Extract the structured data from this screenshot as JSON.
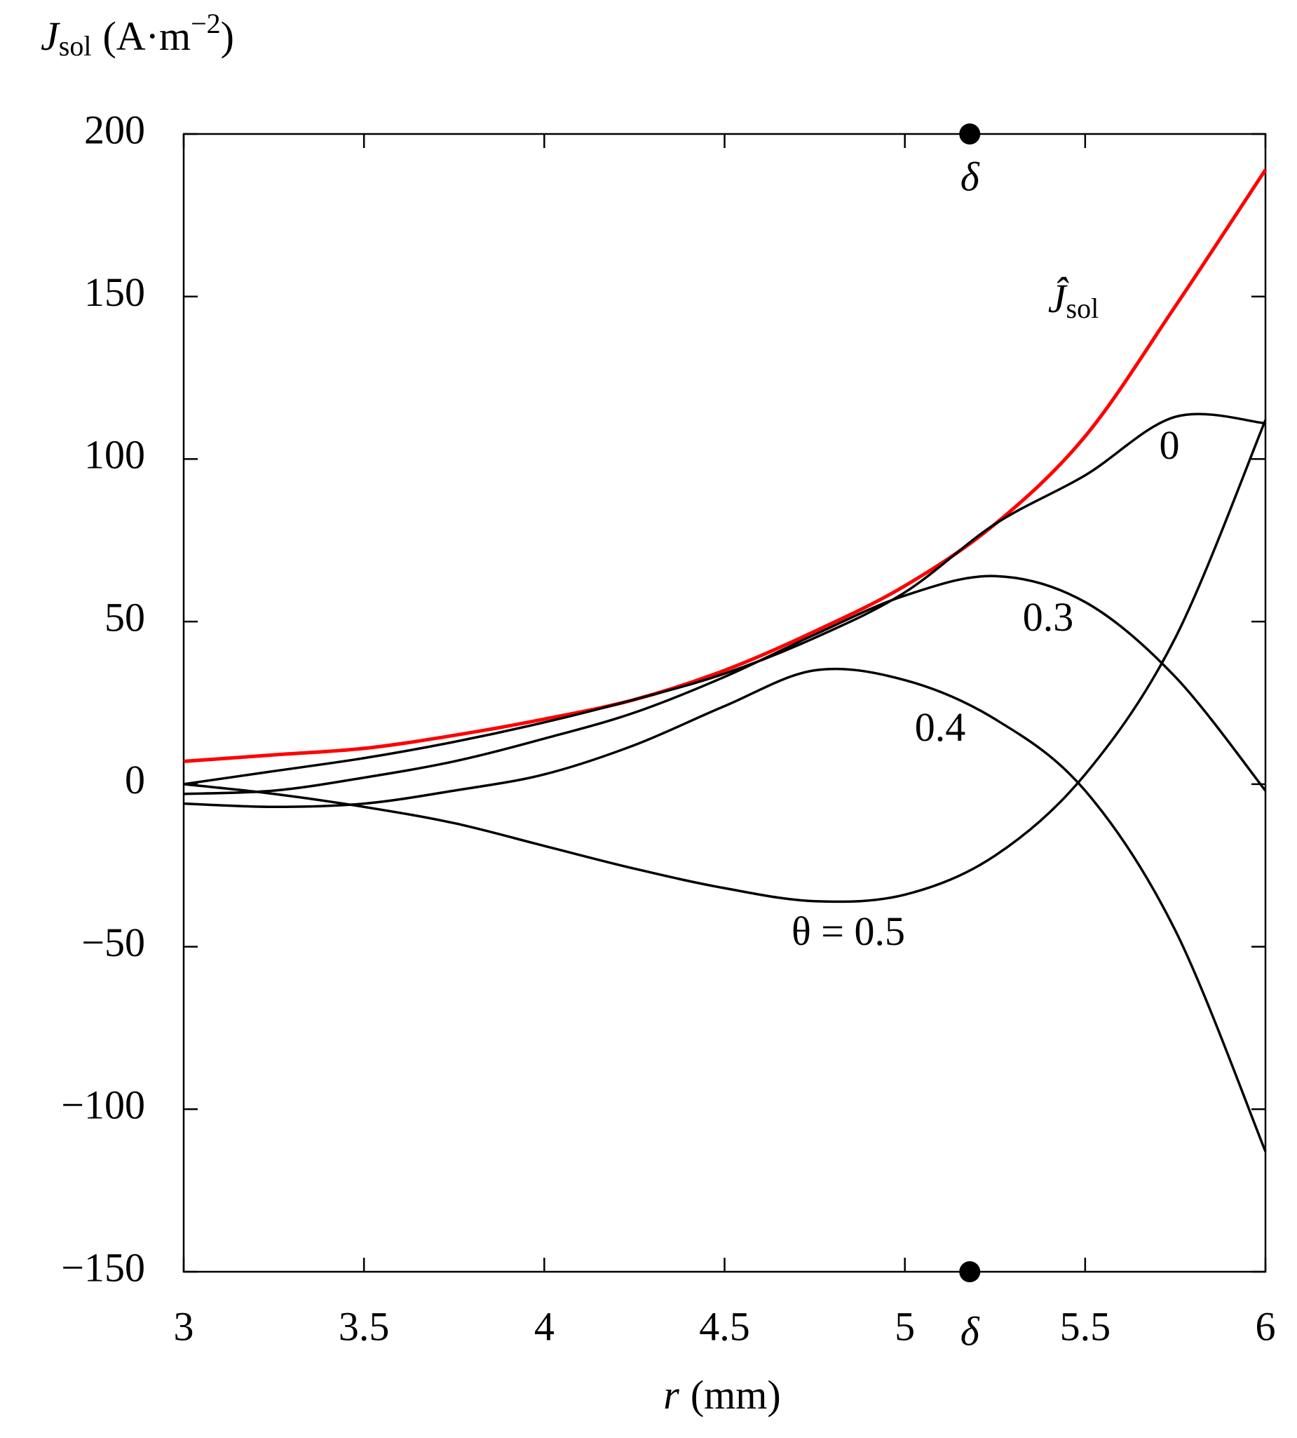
{
  "chart_data": {
    "type": "line",
    "ylabel": {
      "symbol": "J",
      "sub": "sol",
      "unit": "(A·m",
      "sup": "−2",
      "close": ")"
    },
    "xlabel": {
      "symbol": "r",
      "unit": "(mm)"
    },
    "x": [
      3,
      3.25,
      3.5,
      3.75,
      4,
      4.25,
      4.5,
      4.75,
      5,
      5.25,
      5.5,
      5.75,
      6
    ],
    "series": [
      {
        "name": "Ĵ",
        "name_sub": "sol",
        "color": "#ff0000",
        "values": [
          7,
          9,
          11,
          15,
          20,
          26,
          35,
          47,
          61,
          80,
          107,
          147,
          189
        ]
      },
      {
        "name": "0",
        "color": "#000000",
        "values": [
          0,
          4,
          8,
          13,
          19,
          26,
          34,
          45,
          59,
          80,
          95,
          113,
          111
        ]
      },
      {
        "name": "0.3",
        "color": "#000000",
        "values": [
          -3,
          -2,
          2,
          7,
          14,
          22,
          33,
          46,
          58,
          64,
          56,
          33,
          -2
        ]
      },
      {
        "name": "0.4",
        "color": "#000000",
        "values": [
          -6,
          -7,
          -6,
          -2,
          3,
          12,
          24,
          35,
          32,
          20,
          -2,
          -45,
          -113
        ]
      },
      {
        "name": "θ = 0.5",
        "color": "#000000",
        "values": [
          0,
          -3,
          -7,
          -12,
          -19,
          -26,
          -32,
          -36,
          -34,
          -22,
          3,
          45,
          112
        ]
      }
    ],
    "marker": {
      "x": 5.18,
      "label": "δ"
    },
    "xlim": [
      3,
      6
    ],
    "ylim": [
      -150,
      200
    ],
    "xticks": [
      3,
      3.5,
      4,
      4.5,
      5,
      5.5,
      6
    ],
    "yticks": [
      {
        "value": -150,
        "label": "−150"
      },
      {
        "value": -100,
        "label": "−100"
      },
      {
        "value": -50,
        "label": "−50"
      },
      0,
      50,
      100,
      150,
      200
    ]
  }
}
